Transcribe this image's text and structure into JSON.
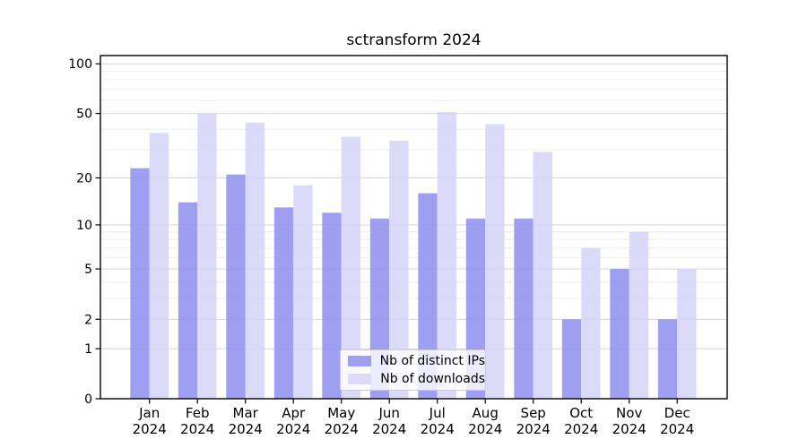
{
  "chart_data": {
    "type": "bar",
    "title": "sctransform 2024",
    "categories": [
      "Jan",
      "Feb",
      "Mar",
      "Apr",
      "May",
      "Jun",
      "Jul",
      "Aug",
      "Sep",
      "Oct",
      "Nov",
      "Dec"
    ],
    "x_tick_year": "2024",
    "series": [
      {
        "name": "Nb of distinct IPs",
        "color": "#9292f0",
        "values": [
          23,
          14,
          21,
          13,
          12,
          11,
          16,
          11,
          11,
          2,
          5,
          2
        ]
      },
      {
        "name": "Nb of downloads",
        "color": "#d6d6f8",
        "values": [
          38,
          50,
          44,
          18,
          36,
          34,
          51,
          43,
          29,
          7,
          9,
          5
        ]
      }
    ],
    "y_scale": "log1p",
    "y_ticks": [
      0,
      1,
      2,
      5,
      10,
      20,
      50,
      100
    ],
    "y_minor_gridlines": [
      3,
      4,
      6,
      7,
      8,
      9,
      30,
      40,
      60,
      70,
      80,
      90
    ],
    "ylim": [
      0,
      110
    ],
    "xlabel": "",
    "ylabel": "",
    "grid": true,
    "legend_position": "bottom-center",
    "colors": {
      "axis": "#000000",
      "major_grid": "#d6d6d6",
      "minor_grid": "#ededed",
      "background": "#ffffff"
    }
  }
}
